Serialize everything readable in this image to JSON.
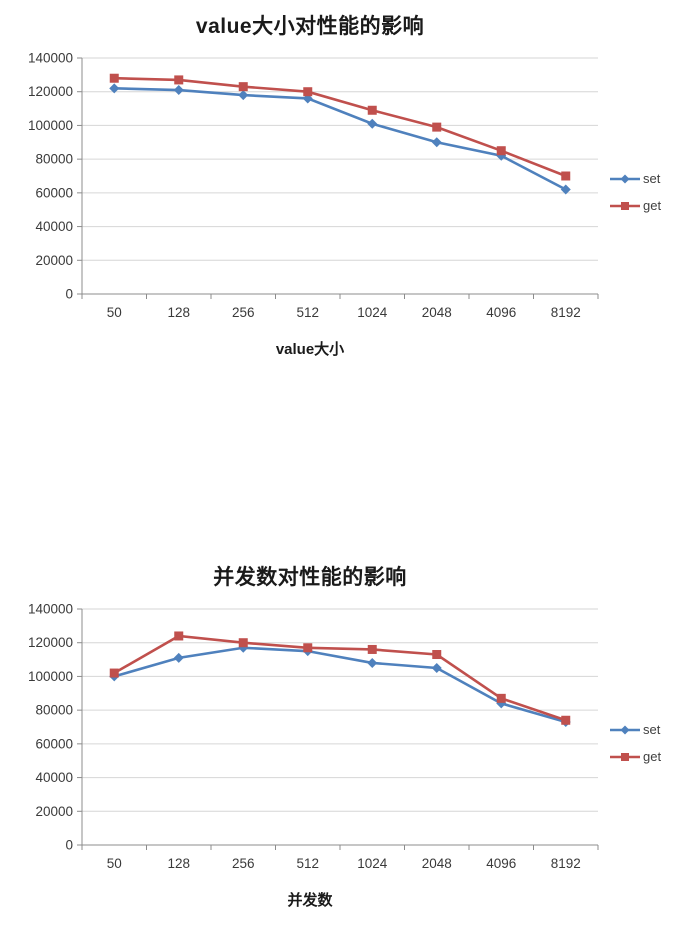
{
  "colors": {
    "set_series": "#4F81BD",
    "get_series": "#C0504D",
    "gridline": "#d6d6d6",
    "axis": "#8c8c8c",
    "tick_text": "#3a3a3a",
    "title_text": "#1a1a1a"
  },
  "chart_data": [
    {
      "type": "line",
      "title": "value大小对性能的影响",
      "xlabel": "value大小",
      "ylabel": "",
      "categories": [
        "50",
        "128",
        "256",
        "512",
        "1024",
        "2048",
        "4096",
        "8192"
      ],
      "series": [
        {
          "name": "set",
          "color": "#4F81BD",
          "marker": "diamond",
          "values": [
            122000,
            121000,
            118000,
            116000,
            101000,
            90000,
            82000,
            62000
          ]
        },
        {
          "name": "get",
          "color": "#C0504D",
          "marker": "square",
          "values": [
            128000,
            127000,
            123000,
            120000,
            109000,
            99000,
            85000,
            70000
          ]
        }
      ],
      "ylim": [
        0,
        140000
      ],
      "ytick_step": 20000,
      "yticks": [
        "0",
        "20000",
        "40000",
        "60000",
        "80000",
        "100000",
        "120000",
        "140000"
      ],
      "grid": true,
      "legend_position": "right"
    },
    {
      "type": "line",
      "title": "并发数对性能的影响",
      "xlabel": "并发数",
      "ylabel": "",
      "categories": [
        "50",
        "128",
        "256",
        "512",
        "1024",
        "2048",
        "4096",
        "8192"
      ],
      "series": [
        {
          "name": "set",
          "color": "#4F81BD",
          "marker": "diamond",
          "values": [
            100000,
            111000,
            117000,
            115000,
            108000,
            105000,
            84000,
            73000
          ]
        },
        {
          "name": "get",
          "color": "#C0504D",
          "marker": "square",
          "values": [
            102000,
            124000,
            120000,
            117000,
            116000,
            113000,
            87000,
            74000
          ]
        }
      ],
      "ylim": [
        0,
        140000
      ],
      "ytick_step": 20000,
      "yticks": [
        "0",
        "20000",
        "40000",
        "60000",
        "80000",
        "100000",
        "120000",
        "140000"
      ],
      "grid": true,
      "legend_position": "right"
    }
  ]
}
